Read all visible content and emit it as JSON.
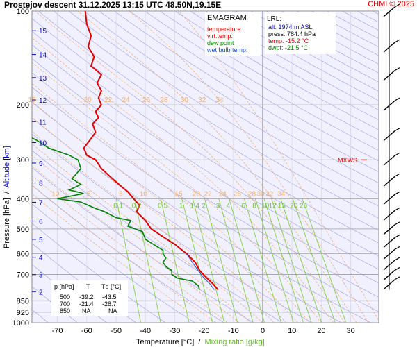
{
  "header": {
    "title": "Prostejov   descent   31.12.2025 13:15 UTC  48.50N,19.15E",
    "credit": "CHMI © 2025"
  },
  "legend": {
    "title": "EMAGRAM",
    "items": [
      {
        "label": "temperature",
        "color": "#e00000"
      },
      {
        "label": "virt.temp.",
        "color": "#e00000"
      },
      {
        "label": "dew point",
        "color": "#008000"
      },
      {
        "label": "wet bulb temp.",
        "color": "#2050d0"
      }
    ]
  },
  "lrl": {
    "title": "LRL:",
    "lines": [
      {
        "text": "alt: 1974 m ASL",
        "color": "#0000c0"
      },
      {
        "text": "press: 784.4 hPa",
        "color": "#000000"
      },
      {
        "text": "temp: -15.2 °C",
        "color": "#e00000"
      },
      {
        "text": "dwpt: -21.5 °C",
        "color": "#008000"
      }
    ]
  },
  "table": {
    "headers": [
      "p [hPa]",
      "T",
      "Td [°C]"
    ],
    "rows": [
      [
        "500",
        "-39.2",
        "-43.5"
      ],
      [
        "700",
        "-21.4",
        "-28.7"
      ],
      [
        "850",
        "NA",
        "NA"
      ]
    ]
  },
  "axes": {
    "ylabel": "Pressure [hPa]",
    "ylabel_sep": "  /  ",
    "ylabel_alt": "Altitude [km]",
    "xlabel": "Temperature [°C]",
    "xlabel_sep": "  /  ",
    "xlabel_mix": "Mixing ratio [g/kg]",
    "pressure_ticks": [
      "100",
      "200",
      "300",
      "400",
      "500",
      "600",
      "700",
      "850",
      "925",
      "1000"
    ],
    "altitude_ticks": [
      "15",
      "14",
      "13",
      "12",
      "11",
      "10",
      "9",
      "8",
      "7",
      "6",
      "5",
      "4",
      "3",
      "2"
    ],
    "temp_ticks": [
      "-70",
      "-60",
      "-50",
      "-40",
      "-30",
      "-20",
      "-10",
      "0",
      "10",
      "20",
      "30"
    ]
  },
  "theta_labels": {
    "row200": [
      "15",
      "20",
      "22",
      "24",
      "26",
      "28",
      "30",
      "32",
      "34"
    ],
    "row400": [
      "10",
      "5",
      "5",
      "10",
      "15",
      "20",
      "22",
      "24",
      "26",
      "28",
      "30",
      "32",
      "34"
    ]
  },
  "mixing_labels": [
    "0.1",
    "0.2",
    "0.5",
    "1",
    "1.4",
    "2",
    "3",
    "4",
    "6",
    "8",
    "10",
    "12",
    "15",
    "20",
    "25"
  ],
  "mxws_label": "MXWS",
  "colors": {
    "temperature": "#e00000",
    "dewpoint": "#008000",
    "wetbulb": "#2050d0",
    "altitude": "#0000c0",
    "dry_adiabat": "#b0b0e8",
    "moist_adiabat": "#f0b070",
    "mixing_ratio": "#80d040"
  },
  "chart_data": {
    "type": "line",
    "temp_range": [
      -80,
      40
    ],
    "pressure_range": [
      100,
      1000
    ],
    "log_pressure": true,
    "series": [
      {
        "name": "temperature",
        "points": [
          [
            -60.5,
            100
          ],
          [
            -60,
            110
          ],
          [
            -58.5,
            120
          ],
          [
            -59.5,
            130
          ],
          [
            -57.5,
            140
          ],
          [
            -58.5,
            150
          ],
          [
            -55,
            160
          ],
          [
            -56.5,
            170
          ],
          [
            -55,
            180
          ],
          [
            -56,
            190
          ],
          [
            -55,
            200
          ],
          [
            -57,
            210
          ],
          [
            -56,
            220
          ],
          [
            -58,
            230
          ],
          [
            -57,
            245
          ],
          [
            -59,
            260
          ],
          [
            -61,
            275
          ],
          [
            -60,
            290
          ],
          [
            -57,
            300
          ],
          [
            -55,
            320
          ],
          [
            -52,
            340
          ],
          [
            -49,
            360
          ],
          [
            -46,
            380
          ],
          [
            -44,
            400
          ],
          [
            -42,
            420
          ],
          [
            -43,
            440
          ],
          [
            -40,
            470
          ],
          [
            -38,
            500
          ],
          [
            -34,
            530
          ],
          [
            -30,
            560
          ],
          [
            -26,
            600
          ],
          [
            -23,
            640
          ],
          [
            -21.5,
            680
          ],
          [
            -19,
            720
          ],
          [
            -17,
            750
          ],
          [
            -15.2,
            784
          ]
        ]
      },
      {
        "name": "dew point",
        "points": [
          [
            -84,
            240
          ],
          [
            -77,
            260
          ],
          [
            -73,
            275
          ],
          [
            -66,
            290
          ],
          [
            -63,
            300
          ],
          [
            -62,
            320
          ],
          [
            -65,
            345
          ],
          [
            -62,
            360
          ],
          [
            -66,
            375
          ],
          [
            -61,
            385
          ],
          [
            -70,
            400
          ],
          [
            -62,
            410
          ],
          [
            -57,
            430
          ],
          [
            -54,
            440
          ],
          [
            -50,
            460
          ],
          [
            -45,
            470
          ],
          [
            -46,
            490
          ],
          [
            -41,
            510
          ],
          [
            -40,
            540
          ],
          [
            -36,
            570
          ],
          [
            -34,
            585
          ],
          [
            -34,
            600
          ],
          [
            -33,
            620
          ],
          [
            -34,
            640
          ],
          [
            -33,
            660
          ],
          [
            -31,
            680
          ],
          [
            -31,
            700
          ],
          [
            -29,
            720
          ],
          [
            -24,
            735
          ],
          [
            -22,
            760
          ],
          [
            -21.5,
            784
          ]
        ]
      },
      {
        "name": "wet bulb temp.",
        "points": [
          [
            -26,
            600
          ],
          [
            -24,
            640
          ],
          [
            -22,
            680
          ],
          [
            -20,
            720
          ],
          [
            -18,
            750
          ],
          [
            -16.5,
            784
          ]
        ]
      }
    ],
    "winds": [
      {
        "p": 100,
        "tag": ""
      },
      {
        "p": 130,
        "tag": ""
      },
      {
        "p": 160,
        "tag": ""
      },
      {
        "p": 200,
        "tag": ""
      },
      {
        "p": 250,
        "tag": ""
      },
      {
        "p": 300,
        "tag": "MXWS"
      },
      {
        "p": 350,
        "tag": ""
      },
      {
        "p": 400,
        "tag": ""
      },
      {
        "p": 450,
        "tag": ""
      },
      {
        "p": 500,
        "tag": ""
      },
      {
        "p": 550,
        "tag": ""
      },
      {
        "p": 600,
        "tag": ""
      },
      {
        "p": 650,
        "tag": ""
      },
      {
        "p": 700,
        "tag": ""
      },
      {
        "p": 750,
        "tag": ""
      }
    ]
  }
}
